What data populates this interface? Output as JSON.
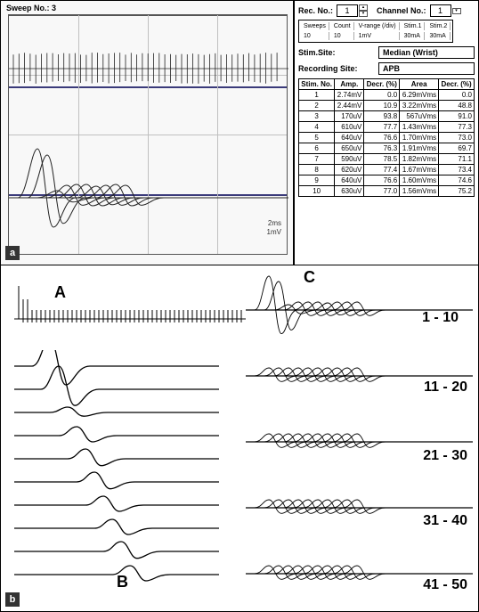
{
  "panel_a": {
    "sweep_label": "Sweep No.: 3",
    "scale_x": "2ms",
    "scale_y": "1mV",
    "label": "a",
    "grid_color": "#c0c0c0",
    "mid_line_color": "#3a3a7a",
    "trace_color": "#222222"
  },
  "controls": {
    "rec_label": "Rec. No.:",
    "rec_value": "1",
    "channel_label": "Channel No.:",
    "channel_value": "1",
    "mini_headers": [
      "Sweeps",
      "Count",
      "V-range (/div)",
      "Stim.1",
      "Stim.2"
    ],
    "mini_values": [
      "10",
      "10",
      "1mV",
      "30mA",
      "30mA"
    ],
    "stim_site_label": "Stim.Site:",
    "stim_site_value": "Median (Wrist)",
    "rec_site_label": "Recording Site:",
    "rec_site_value": "APB"
  },
  "data_table": {
    "headers": [
      "Stim.\nNo.",
      "Amp.",
      "Decr.\n(%)",
      "Area",
      "Decr.\n(%)"
    ],
    "rows": [
      [
        "1",
        "2.74mV",
        "0.0",
        "6.29mVms",
        "0.0"
      ],
      [
        "2",
        "2.44mV",
        "10.9",
        "3.22mVms",
        "48.8"
      ],
      [
        "3",
        "170uV",
        "93.8",
        "567uVms",
        "91.0"
      ],
      [
        "4",
        "610uV",
        "77.7",
        "1.43mVms",
        "77.3"
      ],
      [
        "5",
        "640uV",
        "76.6",
        "1.70mVms",
        "73.0"
      ],
      [
        "6",
        "650uV",
        "76.3",
        "1.91mVms",
        "69.7"
      ],
      [
        "7",
        "590uV",
        "78.5",
        "1.82mVms",
        "71.1"
      ],
      [
        "8",
        "620uV",
        "77.4",
        "1.67mVms",
        "73.4"
      ],
      [
        "9",
        "640uV",
        "76.6",
        "1.60mVms",
        "74.6"
      ],
      [
        "10",
        "630uV",
        "77.0",
        "1.56mVms",
        "75.2"
      ]
    ]
  },
  "panel_b": {
    "label": "b",
    "label_A": "A",
    "label_B": "B",
    "label_C": "C",
    "ranges": [
      "1 - 10",
      "11 - 20",
      "21 - 30",
      "31 - 40",
      "41 - 50"
    ],
    "trace_color": "#000000"
  }
}
